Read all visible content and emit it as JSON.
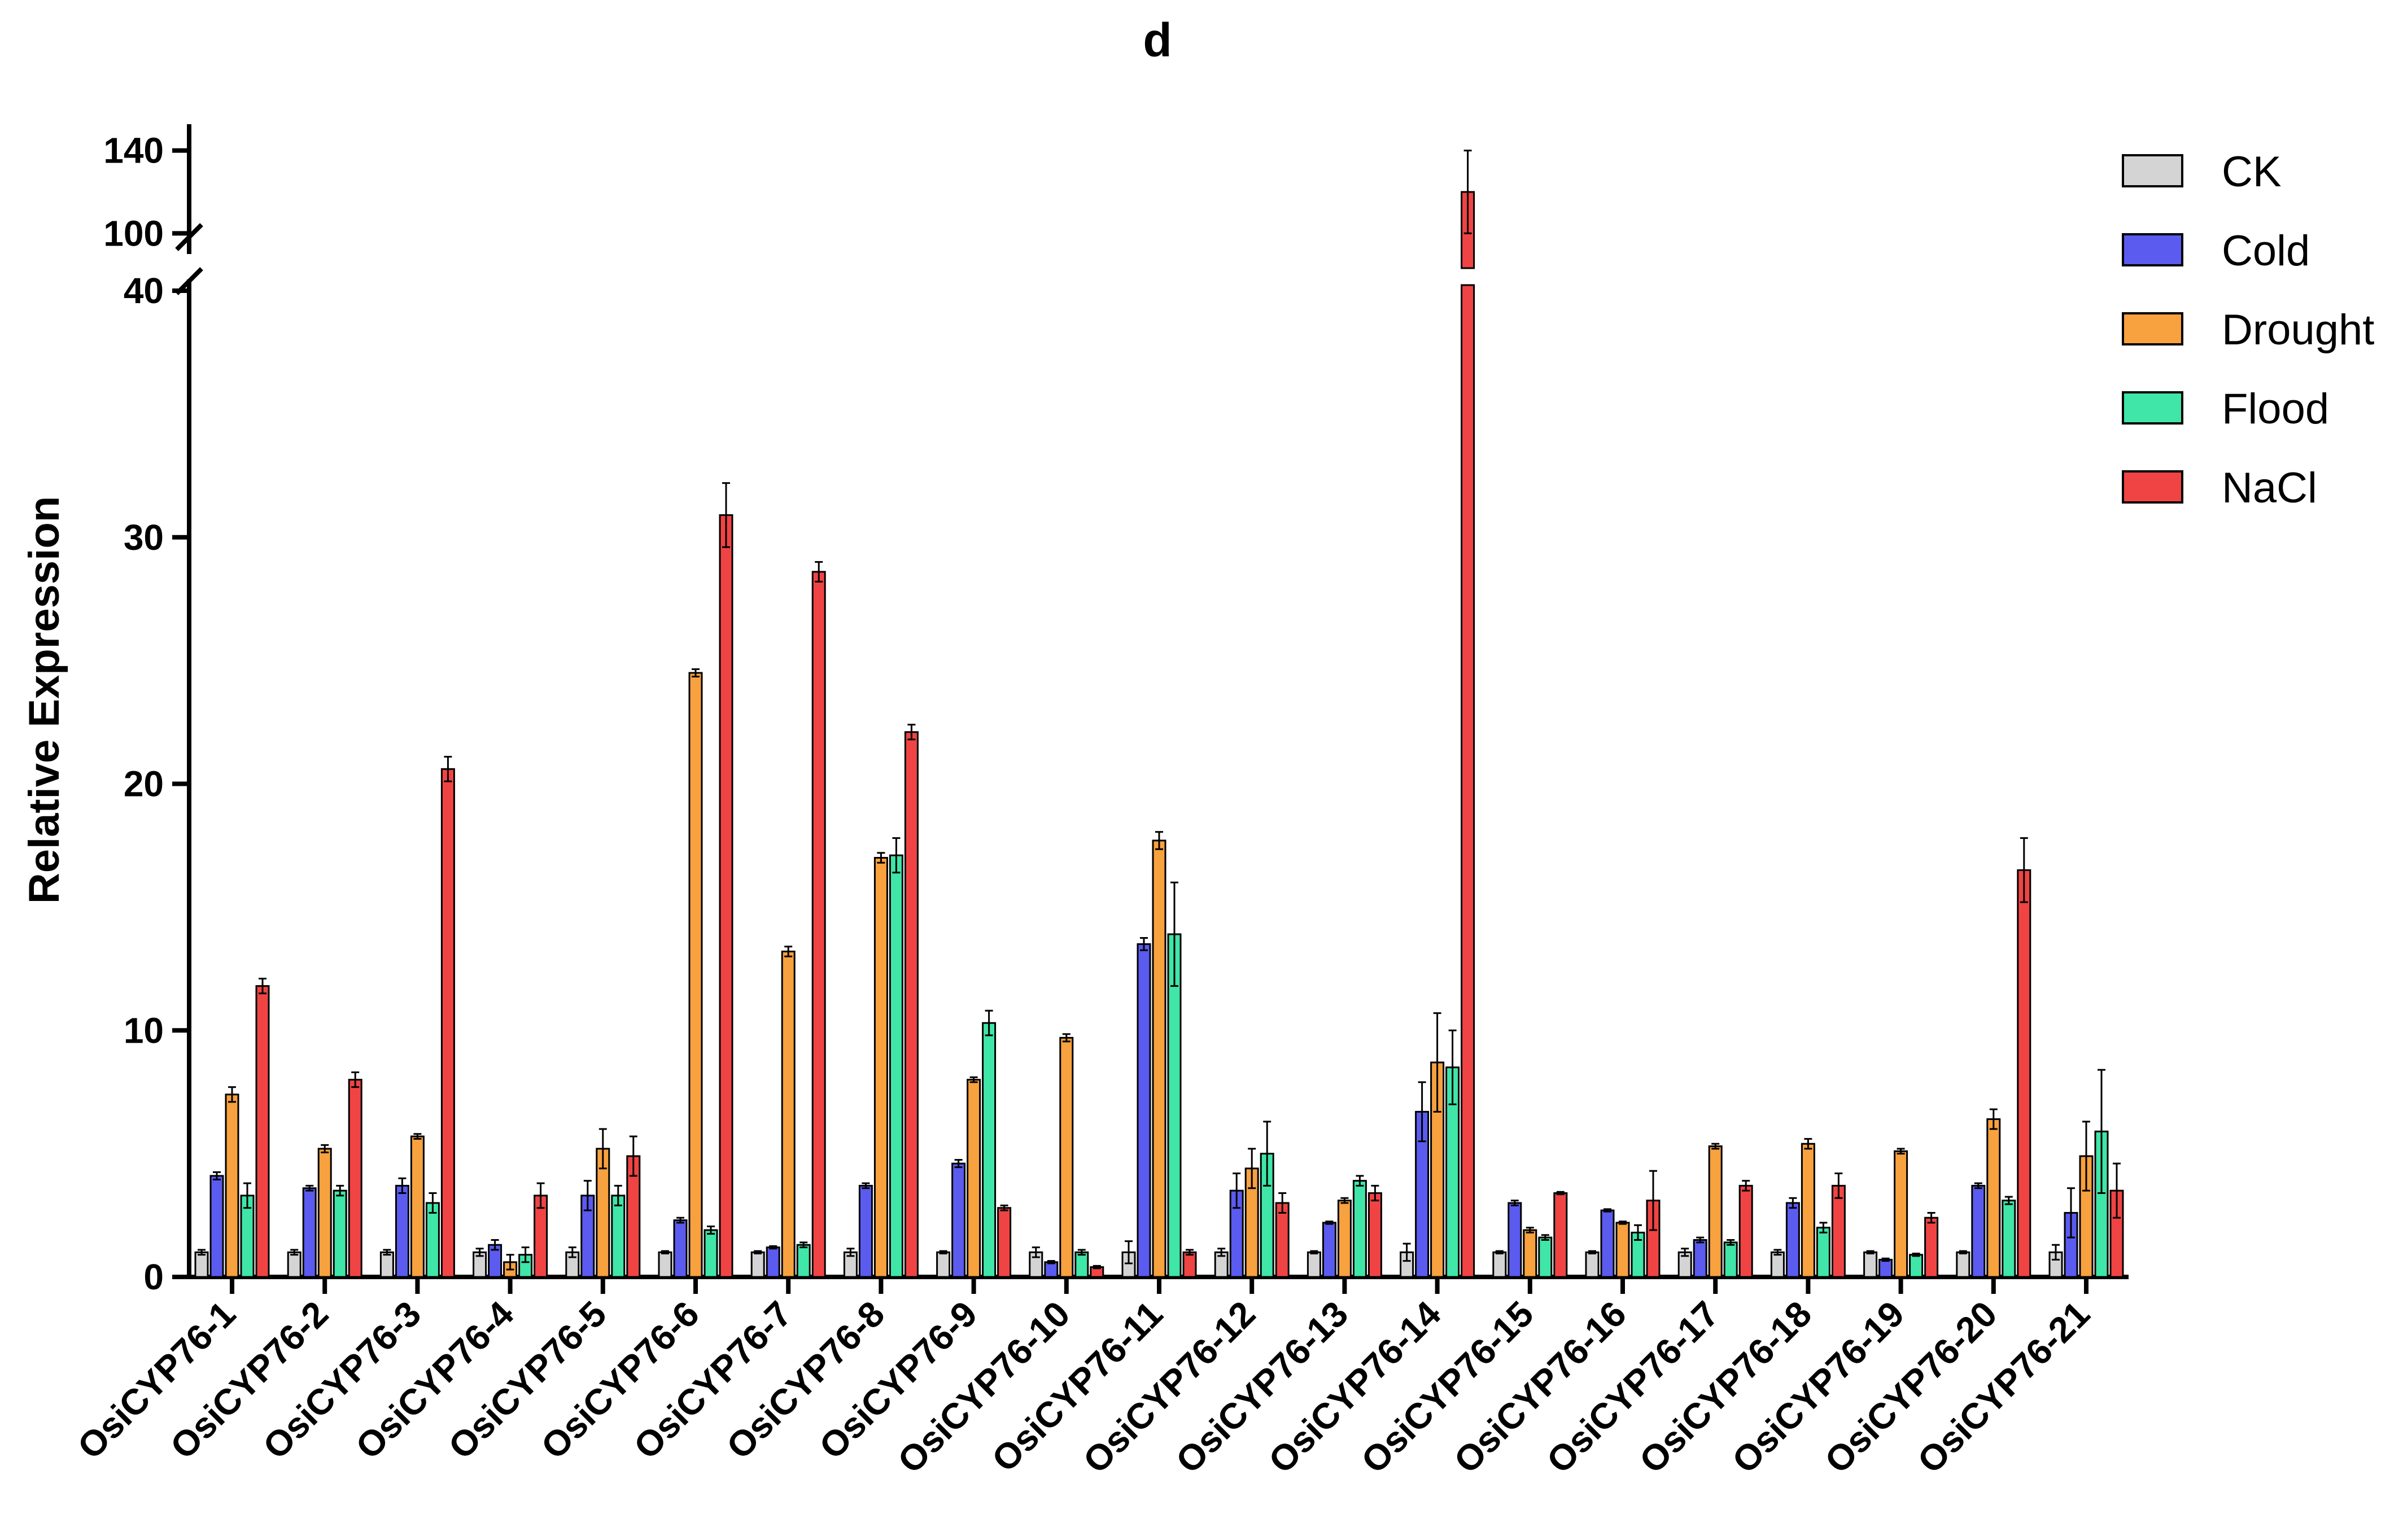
{
  "chart_data": {
    "type": "bar",
    "title": "d",
    "xlabel": "",
    "ylabel": "Relative Expression",
    "axis_break": true,
    "ylim_lower": [
      0,
      40
    ],
    "ylim_upper": [
      90,
      150
    ],
    "yticks_lower": [
      "0",
      "10",
      "20",
      "30",
      "40"
    ],
    "yticks_upper": [
      "100",
      "140"
    ],
    "legend_position": "top-right",
    "grid": false,
    "categories": [
      "OsiCYP76-1",
      "OsiCYP76-2",
      "OsiCYP76-3",
      "OsiCYP76-4",
      "OsiCYP76-5",
      "OsiCYP76-6",
      "OsiCYP76-7",
      "OsiCYP76-8",
      "OsiCYP76-9",
      "OsiCYP76-10",
      "OsiCYP76-11",
      "OsiCYP76-12",
      "OsiCYP76-13",
      "OsiCYP76-14",
      "OsiCYP76-15",
      "OsiCYP76-16",
      "OsiCYP76-17",
      "OsiCYP76-18",
      "OsiCYP76-19",
      "OsiCYP76-20",
      "OsiCYP76-21"
    ],
    "series": [
      {
        "name": "CK",
        "color": "#d4d4d4",
        "values": [
          1,
          1,
          1,
          1,
          1,
          1,
          1,
          1,
          1,
          1,
          1,
          1,
          1,
          1,
          1,
          1,
          1,
          1,
          1,
          1,
          1
        ],
        "errors": [
          0.1,
          0.1,
          0.1,
          0.15,
          0.2,
          0.05,
          0.05,
          0.15,
          0.05,
          0.2,
          0.45,
          0.15,
          0.05,
          0.35,
          0.05,
          0.05,
          0.15,
          0.1,
          0.05,
          0.05,
          0.3
        ]
      },
      {
        "name": "Cold",
        "color": "#5b5bf0",
        "values": [
          4.1,
          3.6,
          3.7,
          1.3,
          3.3,
          2.3,
          1.2,
          3.7,
          4.6,
          0.6,
          13.5,
          3.5,
          2.2,
          6.7,
          3.0,
          2.7,
          1.5,
          3.0,
          0.7,
          3.7,
          2.6
        ],
        "errors": [
          0.15,
          0.1,
          0.3,
          0.2,
          0.6,
          0.1,
          0.05,
          0.1,
          0.15,
          0.05,
          0.25,
          0.7,
          0.05,
          1.2,
          0.1,
          0.05,
          0.1,
          0.2,
          0.05,
          0.1,
          1.0
        ]
      },
      {
        "name": "Drought",
        "color": "#f7a13f",
        "values": [
          7.4,
          5.2,
          5.7,
          0.6,
          5.2,
          24.5,
          13.2,
          17.0,
          8.0,
          9.7,
          17.7,
          4.4,
          3.1,
          8.7,
          1.9,
          2.2,
          5.3,
          5.4,
          5.1,
          6.4,
          4.9
        ],
        "errors": [
          0.3,
          0.15,
          0.1,
          0.3,
          0.8,
          0.15,
          0.2,
          0.2,
          0.1,
          0.15,
          0.35,
          0.8,
          0.1,
          2.0,
          0.1,
          0.05,
          0.1,
          0.2,
          0.1,
          0.4,
          1.4
        ]
      },
      {
        "name": "Flood",
        "color": "#3fe6a8",
        "values": [
          3.3,
          3.5,
          3.0,
          0.9,
          3.3,
          1.9,
          1.3,
          17.1,
          10.3,
          1.0,
          13.9,
          5.0,
          3.9,
          8.5,
          1.6,
          1.8,
          1.4,
          2.0,
          0.9,
          3.1,
          5.9
        ],
        "errors": [
          0.5,
          0.2,
          0.4,
          0.3,
          0.4,
          0.15,
          0.1,
          0.7,
          0.5,
          0.1,
          2.1,
          1.3,
          0.2,
          1.5,
          0.1,
          0.3,
          0.1,
          0.2,
          0.05,
          0.15,
          2.5
        ]
      },
      {
        "name": "NaCl",
        "color": "#f04444",
        "values": [
          11.8,
          8.0,
          20.6,
          3.3,
          4.9,
          30.9,
          28.6,
          22.1,
          2.8,
          0.4,
          1.0,
          3.0,
          3.4,
          120,
          3.4,
          3.1,
          3.7,
          3.7,
          2.4,
          16.5,
          3.5
        ],
        "errors": [
          0.3,
          0.3,
          0.5,
          0.5,
          0.8,
          1.3,
          0.4,
          0.3,
          0.1,
          0.05,
          0.1,
          0.4,
          0.3,
          20,
          0.05,
          1.2,
          0.2,
          0.5,
          0.2,
          1.3,
          1.1
        ]
      }
    ]
  }
}
